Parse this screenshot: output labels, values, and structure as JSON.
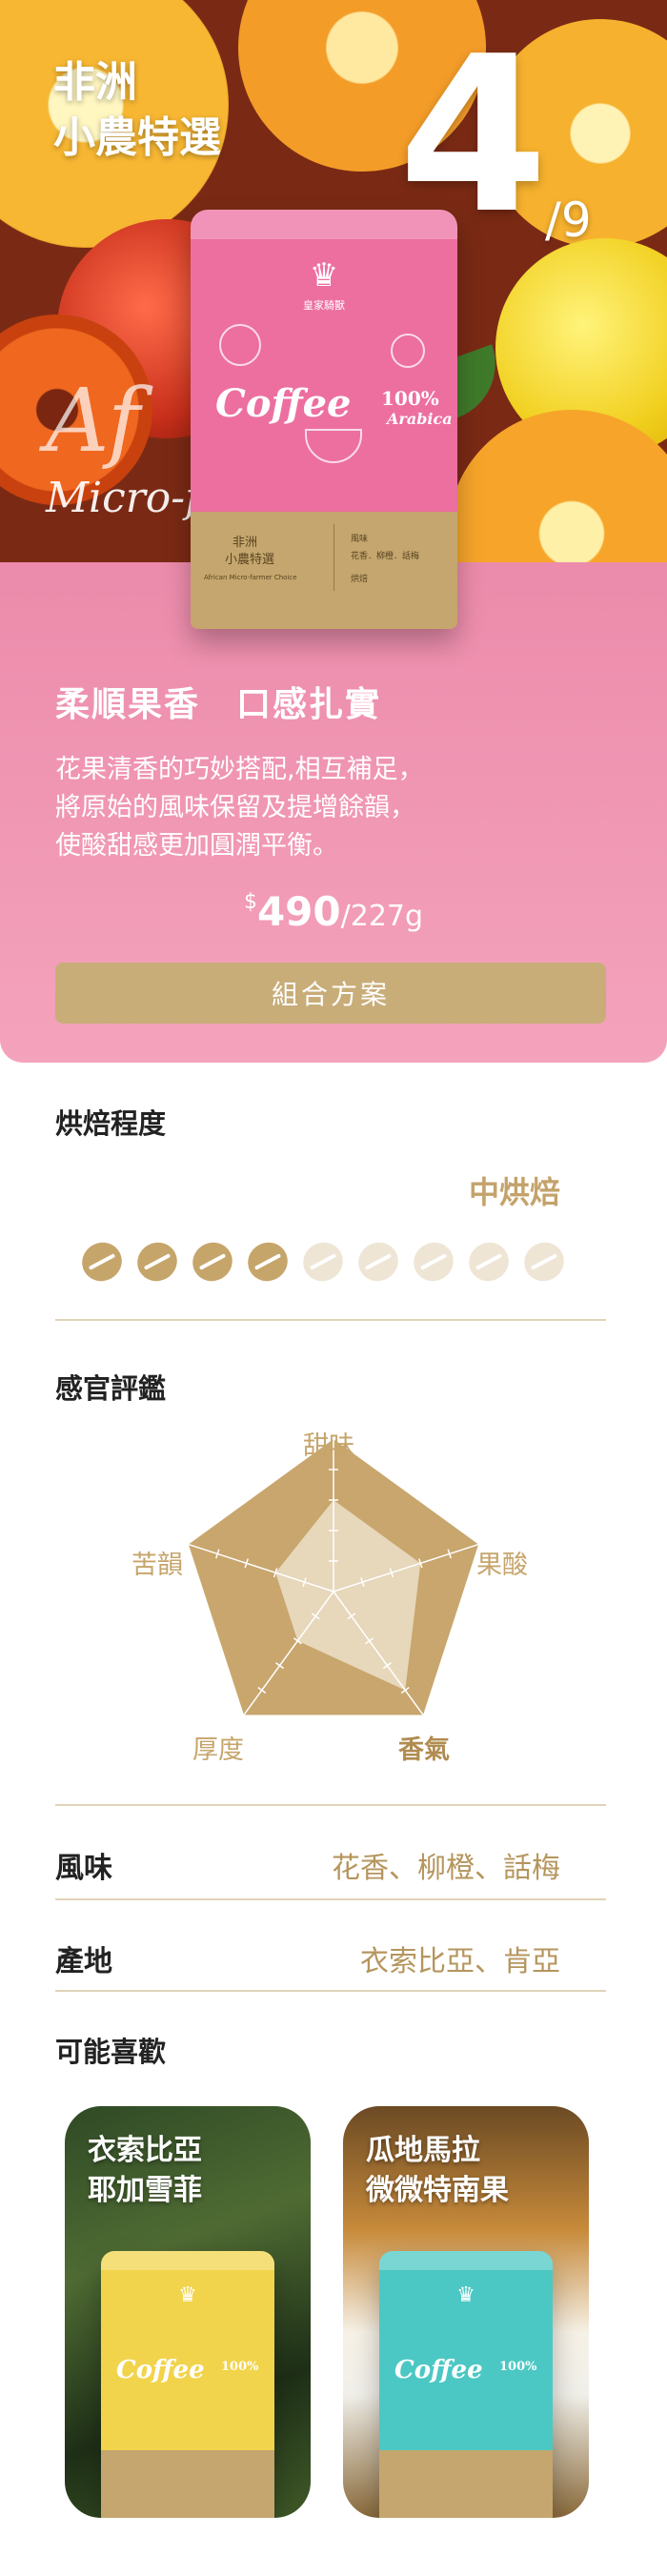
{
  "hero": {
    "title_line1": "非洲",
    "title_line2": "小農特選",
    "index": "4",
    "total": "/9",
    "ghost_text1": "Af",
    "ghost_text2": "Micro-f"
  },
  "product_bag": {
    "brand": "皇家騎獸",
    "name": "非洲\n小農特選",
    "name_line1": "非洲",
    "name_line2": "小農特選",
    "coffee_word": "Coffee",
    "arabica": "100% Arabica",
    "pct": "100%",
    "arabica_word": "Arabica",
    "subtitle": "African Micro-farmer Choice",
    "flavor_tag": "花香．柳橙．話梅",
    "tag_label": "風味",
    "roast_tag": "烘焙",
    "color": "#ec6fa0"
  },
  "card": {
    "headline": "柔順果香　口感扎實",
    "desc_line1": "花果清香的巧妙搭配,相互補足，",
    "desc_line2": "將原始的風味保留及提增餘韻，",
    "desc_line3": "使酸甜感更加圓潤平衡。",
    "currency": "$",
    "price": "490",
    "unit": "/227g",
    "button_label": "組合方案",
    "bg_color": "#f09bb5",
    "button_color": "#c8ad79"
  },
  "roast": {
    "title": "烘焙程度",
    "value": "中烘焙",
    "level": 4,
    "max": 9
  },
  "sensory": {
    "title": "感官評鑑",
    "labels": {
      "sweet": "甜味",
      "acid": "果酸",
      "aroma": "香氣",
      "body": "厚度",
      "finish": "苦韻"
    },
    "highlight": "aroma",
    "max": 5,
    "scores": {
      "sweet": 3,
      "acid": 3,
      "aroma": 4,
      "body": 2,
      "finish": 2
    },
    "colors": {
      "outer": "#c8a66d",
      "inner": "#e7d7bb"
    }
  },
  "flavor": {
    "key": "風味",
    "value": "花香、柳橙、話梅"
  },
  "origin": {
    "key": "產地",
    "value": "衣索比亞、肯亞"
  },
  "recommend": {
    "title": "可能喜歡",
    "items": [
      {
        "title_line1": "衣索比亞",
        "title_line2": "耶加雪菲",
        "bag_color": "#f2d44c",
        "bg": "forest"
      },
      {
        "title_line1": "瓜地馬拉",
        "title_line2": "微微特南果",
        "bag_color": "#4cc8c4",
        "bg": "waterfall"
      }
    ]
  }
}
